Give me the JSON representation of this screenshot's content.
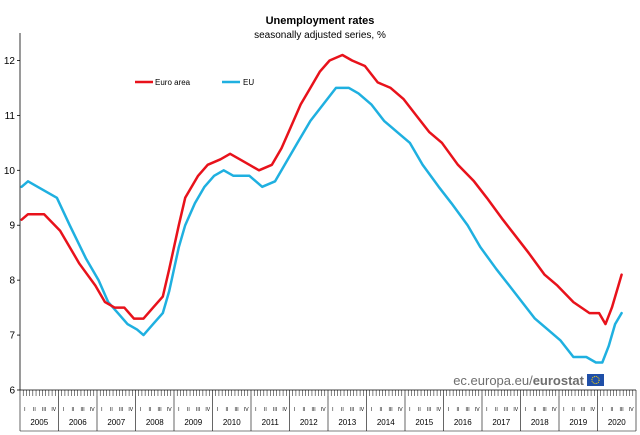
{
  "chart_data": {
    "type": "line",
    "title": "Unemployment rates",
    "subtitle": "seasonally adjusted series, %",
    "ylim": [
      6,
      12.5
    ],
    "yticks": [
      6,
      7,
      8,
      9,
      10,
      11,
      12
    ],
    "years": [
      "2005",
      "2006",
      "2007",
      "2008",
      "2009",
      "2010",
      "2011",
      "2012",
      "2013",
      "2014",
      "2015",
      "2016",
      "2017",
      "2018",
      "2019",
      "2020"
    ],
    "quarter_labels": [
      "I",
      "II",
      "III",
      "IV"
    ],
    "series": [
      {
        "name": "Euro area",
        "color": "#e8121b",
        "points": [
          [
            "2005-01",
            9.1
          ],
          [
            "2005-03",
            9.2
          ],
          [
            "2005-08",
            9.2
          ],
          [
            "2006-01",
            8.9
          ],
          [
            "2006-07",
            8.3
          ],
          [
            "2006-12",
            7.9
          ],
          [
            "2007-03",
            7.6
          ],
          [
            "2007-06",
            7.5
          ],
          [
            "2007-09",
            7.5
          ],
          [
            "2007-12",
            7.3
          ],
          [
            "2008-03",
            7.3
          ],
          [
            "2008-06",
            7.5
          ],
          [
            "2008-09",
            7.7
          ],
          [
            "2008-11",
            8.2
          ],
          [
            "2009-02",
            9.0
          ],
          [
            "2009-04",
            9.5
          ],
          [
            "2009-08",
            9.9
          ],
          [
            "2009-11",
            10.1
          ],
          [
            "2010-03",
            10.2
          ],
          [
            "2010-06",
            10.3
          ],
          [
            "2010-09",
            10.2
          ],
          [
            "2010-12",
            10.1
          ],
          [
            "2011-03",
            10.0
          ],
          [
            "2011-07",
            10.1
          ],
          [
            "2011-10",
            10.4
          ],
          [
            "2012-01",
            10.8
          ],
          [
            "2012-04",
            11.2
          ],
          [
            "2012-07",
            11.5
          ],
          [
            "2012-10",
            11.8
          ],
          [
            "2013-01",
            12.0
          ],
          [
            "2013-05",
            12.1
          ],
          [
            "2013-08",
            12.0
          ],
          [
            "2013-12",
            11.9
          ],
          [
            "2014-04",
            11.6
          ],
          [
            "2014-08",
            11.5
          ],
          [
            "2014-12",
            11.3
          ],
          [
            "2015-04",
            11.0
          ],
          [
            "2015-08",
            10.7
          ],
          [
            "2015-12",
            10.5
          ],
          [
            "2016-05",
            10.1
          ],
          [
            "2016-10",
            9.8
          ],
          [
            "2017-02",
            9.5
          ],
          [
            "2017-07",
            9.1
          ],
          [
            "2017-11",
            8.8
          ],
          [
            "2018-03",
            8.5
          ],
          [
            "2018-08",
            8.1
          ],
          [
            "2018-12",
            7.9
          ],
          [
            "2019-05",
            7.6
          ],
          [
            "2019-10",
            7.4
          ],
          [
            "2020-01",
            7.4
          ],
          [
            "2020-03",
            7.2
          ],
          [
            "2020-05",
            7.5
          ],
          [
            "2020-07",
            7.9
          ],
          [
            "2020-08",
            8.1
          ]
        ]
      },
      {
        "name": "EU",
        "color": "#1fb0e0",
        "points": [
          [
            "2005-01",
            9.7
          ],
          [
            "2005-03",
            9.8
          ],
          [
            "2005-06",
            9.7
          ],
          [
            "2005-12",
            9.5
          ],
          [
            "2006-04",
            9.0
          ],
          [
            "2006-09",
            8.4
          ],
          [
            "2007-01",
            8.0
          ],
          [
            "2007-04",
            7.6
          ],
          [
            "2007-07",
            7.4
          ],
          [
            "2007-10",
            7.2
          ],
          [
            "2008-01",
            7.1
          ],
          [
            "2008-03",
            7.0
          ],
          [
            "2008-06",
            7.2
          ],
          [
            "2008-09",
            7.4
          ],
          [
            "2008-11",
            7.8
          ],
          [
            "2009-02",
            8.6
          ],
          [
            "2009-04",
            9.0
          ],
          [
            "2009-07",
            9.4
          ],
          [
            "2009-10",
            9.7
          ],
          [
            "2010-01",
            9.9
          ],
          [
            "2010-04",
            10.0
          ],
          [
            "2010-07",
            9.9
          ],
          [
            "2010-12",
            9.9
          ],
          [
            "2011-04",
            9.7
          ],
          [
            "2011-08",
            9.8
          ],
          [
            "2011-11",
            10.1
          ],
          [
            "2012-03",
            10.5
          ],
          [
            "2012-07",
            10.9
          ],
          [
            "2012-11",
            11.2
          ],
          [
            "2013-03",
            11.5
          ],
          [
            "2013-07",
            11.5
          ],
          [
            "2013-10",
            11.4
          ],
          [
            "2014-02",
            11.2
          ],
          [
            "2014-06",
            10.9
          ],
          [
            "2014-10",
            10.7
          ],
          [
            "2015-02",
            10.5
          ],
          [
            "2015-06",
            10.1
          ],
          [
            "2015-11",
            9.7
          ],
          [
            "2016-03",
            9.4
          ],
          [
            "2016-08",
            9.0
          ],
          [
            "2016-12",
            8.6
          ],
          [
            "2017-05",
            8.2
          ],
          [
            "2017-09",
            7.9
          ],
          [
            "2018-01",
            7.6
          ],
          [
            "2018-05",
            7.3
          ],
          [
            "2018-09",
            7.1
          ],
          [
            "2019-01",
            6.9
          ],
          [
            "2019-05",
            6.6
          ],
          [
            "2019-09",
            6.6
          ],
          [
            "2019-12",
            6.5
          ],
          [
            "2020-02",
            6.5
          ],
          [
            "2020-04",
            6.8
          ],
          [
            "2020-06",
            7.2
          ],
          [
            "2020-08",
            7.4
          ]
        ]
      }
    ],
    "legend_placement": "top-left",
    "grid": false
  },
  "source": {
    "text": "ec.europa.eu/",
    "brand": "eurostat"
  },
  "colors": {
    "euro_area": "#e8121b",
    "eu": "#1fb0e0",
    "flag_blue": "#1f4fa8",
    "flag_star": "#ffd800"
  }
}
